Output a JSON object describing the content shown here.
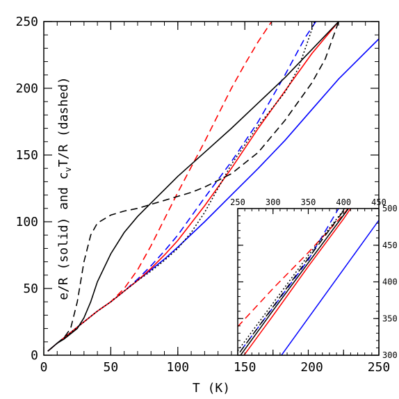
{
  "chart_data": {
    "type": "line",
    "xlabel": "T (K)",
    "ylabel": {
      "part1": "e/R (solid) and c",
      "subscript": "v",
      "part2": "T/R (dashed)"
    },
    "xlim": [
      0,
      250
    ],
    "ylim": [
      0,
      250
    ],
    "xticks": [
      0,
      50,
      100,
      150,
      200,
      250
    ],
    "yticks": [
      0,
      50,
      100,
      150,
      200,
      250
    ],
    "grid": false,
    "series": [
      {
        "key": "blue_solid",
        "color": "#0000ff",
        "dash": "solid",
        "points": [
          [
            3,
            3
          ],
          [
            10,
            9
          ],
          [
            20,
            17
          ],
          [
            30,
            25
          ],
          [
            40,
            33
          ],
          [
            50,
            40
          ],
          [
            60,
            48
          ],
          [
            70,
            56
          ],
          [
            80,
            64
          ],
          [
            90,
            72
          ],
          [
            100,
            81
          ],
          [
            120,
            100
          ],
          [
            140,
            120
          ],
          [
            160,
            140
          ],
          [
            180,
            161
          ],
          [
            200,
            184
          ],
          [
            220,
            207
          ],
          [
            250,
            237
          ]
        ]
      },
      {
        "key": "blue_dashed",
        "color": "#0000ff",
        "dash": "dashed",
        "points": [
          [
            3,
            3
          ],
          [
            10,
            9
          ],
          [
            20,
            17
          ],
          [
            30,
            25
          ],
          [
            40,
            33
          ],
          [
            50,
            40
          ],
          [
            60,
            48
          ],
          [
            70,
            57
          ],
          [
            80,
            67
          ],
          [
            90,
            78
          ],
          [
            100,
            90
          ],
          [
            120,
            118
          ],
          [
            140,
            145
          ],
          [
            160,
            175
          ],
          [
            180,
            210
          ],
          [
            195,
            238
          ],
          [
            203,
            250
          ]
        ]
      },
      {
        "key": "red_solid",
        "color": "#ff0000",
        "dash": "solid",
        "points": [
          [
            3,
            3
          ],
          [
            10,
            9
          ],
          [
            20,
            17
          ],
          [
            30,
            25
          ],
          [
            40,
            33
          ],
          [
            50,
            40
          ],
          [
            60,
            48
          ],
          [
            70,
            56
          ],
          [
            80,
            65
          ],
          [
            90,
            75
          ],
          [
            100,
            86
          ],
          [
            120,
            112
          ],
          [
            140,
            140
          ],
          [
            160,
            170
          ],
          [
            180,
            198
          ],
          [
            200,
            226
          ],
          [
            220,
            250
          ]
        ]
      },
      {
        "key": "red_dashed",
        "color": "#ff0000",
        "dash": "dashed",
        "points": [
          [
            3,
            3
          ],
          [
            10,
            9
          ],
          [
            20,
            17
          ],
          [
            30,
            25
          ],
          [
            40,
            33
          ],
          [
            50,
            40
          ],
          [
            60,
            50
          ],
          [
            70,
            64
          ],
          [
            80,
            82
          ],
          [
            90,
            102
          ],
          [
            100,
            122
          ],
          [
            110,
            141
          ],
          [
            120,
            160
          ],
          [
            130,
            180
          ],
          [
            140,
            200
          ],
          [
            150,
            218
          ],
          [
            160,
            235
          ],
          [
            170,
            250
          ]
        ]
      },
      {
        "key": "black_solid",
        "color": "#000000",
        "dash": "solid",
        "points": [
          [
            3,
            3
          ],
          [
            10,
            9
          ],
          [
            15,
            12
          ],
          [
            20,
            16
          ],
          [
            25,
            20
          ],
          [
            30,
            28
          ],
          [
            35,
            40
          ],
          [
            40,
            55
          ],
          [
            50,
            76
          ],
          [
            60,
            92
          ],
          [
            70,
            104
          ],
          [
            80,
            114
          ],
          [
            90,
            124
          ],
          [
            100,
            134
          ],
          [
            120,
            152
          ],
          [
            140,
            170
          ],
          [
            160,
            189
          ],
          [
            180,
            208
          ],
          [
            200,
            229
          ],
          [
            220,
            250
          ]
        ]
      },
      {
        "key": "black_dashed",
        "color": "#000000",
        "dash": "dashed",
        "points": [
          [
            3,
            3
          ],
          [
            10,
            9
          ],
          [
            15,
            13
          ],
          [
            20,
            20
          ],
          [
            25,
            40
          ],
          [
            30,
            70
          ],
          [
            35,
            90
          ],
          [
            40,
            99
          ],
          [
            50,
            105
          ],
          [
            60,
            108
          ],
          [
            70,
            110
          ],
          [
            80,
            113
          ],
          [
            90,
            116
          ],
          [
            100,
            119
          ],
          [
            110,
            122
          ],
          [
            120,
            126
          ],
          [
            140,
            136
          ],
          [
            160,
            152
          ],
          [
            180,
            176
          ],
          [
            200,
            204
          ],
          [
            210,
            222
          ],
          [
            220,
            250
          ]
        ]
      },
      {
        "key": "black_dotted",
        "color": "#000000",
        "dash": "dotted",
        "points": [
          [
            3,
            3
          ],
          [
            10,
            9
          ],
          [
            20,
            17
          ],
          [
            30,
            25
          ],
          [
            40,
            33
          ],
          [
            50,
            40
          ],
          [
            60,
            48
          ],
          [
            70,
            56
          ],
          [
            80,
            63
          ],
          [
            90,
            71
          ],
          [
            100,
            80
          ],
          [
            110,
            92
          ],
          [
            120,
            107
          ],
          [
            130,
            125
          ],
          [
            140,
            143
          ],
          [
            160,
            172
          ],
          [
            180,
            197
          ],
          [
            190,
            215
          ],
          [
            200,
            244
          ],
          [
            202,
            250
          ]
        ]
      }
    ],
    "inset": {
      "xlim": [
        250,
        450
      ],
      "ylim": [
        300,
        500
      ],
      "xticks": [
        250,
        300,
        350,
        400,
        450
      ],
      "yticks": [
        300,
        350,
        400,
        450,
        500
      ],
      "series": [
        {
          "key": "blue_solid",
          "color": "#0000ff",
          "dash": "solid",
          "points": [
            [
              312,
              300
            ],
            [
              450,
              484
            ]
          ]
        },
        {
          "key": "blue_dashed",
          "color": "#0000ff",
          "dash": "dashed",
          "points": [
            [
              255,
              307
            ],
            [
              300,
              365
            ],
            [
              350,
              430
            ],
            [
              393,
              500
            ]
          ]
        },
        {
          "key": "red_solid",
          "color": "#ff0000",
          "dash": "solid",
          "points": [
            [
              259,
              300
            ],
            [
              300,
              354
            ],
            [
              350,
              421
            ],
            [
              400,
              486
            ],
            [
              410,
              500
            ]
          ]
        },
        {
          "key": "red_dashed",
          "color": "#ff0000",
          "dash": "dashed",
          "points": [
            [
              250,
              339
            ],
            [
              300,
              391
            ],
            [
              350,
              440
            ],
            [
              400,
              492
            ],
            [
              406,
              500
            ]
          ]
        },
        {
          "key": "black_solid",
          "color": "#000000",
          "dash": "solid",
          "points": [
            [
              254,
              300
            ],
            [
              300,
              361
            ],
            [
              350,
              426
            ],
            [
              400,
              491
            ],
            [
              407,
              500
            ]
          ]
        },
        {
          "key": "black_dashed",
          "color": "#000000",
          "dash": "dashed",
          "points": [
            [
              253,
              304
            ],
            [
              300,
              366
            ],
            [
              350,
              432
            ],
            [
              400,
              497
            ],
            [
              402,
              500
            ]
          ]
        },
        {
          "key": "black_dotted",
          "color": "#000000",
          "dash": "dotted",
          "points": [
            [
              250,
              306
            ],
            [
              300,
              371
            ],
            [
              350,
              436
            ],
            [
              400,
              498
            ],
            [
              402,
              500
            ]
          ]
        }
      ]
    }
  }
}
